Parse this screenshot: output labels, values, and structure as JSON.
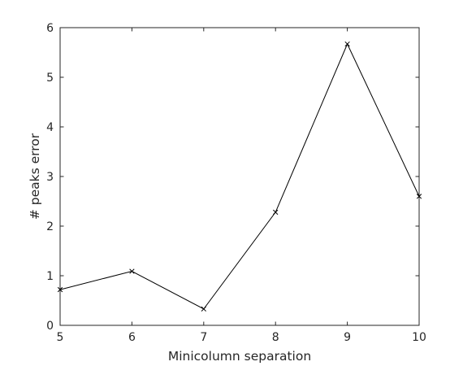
{
  "chart_data": {
    "type": "line",
    "title": "",
    "xlabel": "Minicolumn separation",
    "ylabel": "# peaks error",
    "xlim": [
      5,
      10
    ],
    "ylim": [
      0,
      6
    ],
    "x_ticks": [
      5,
      6,
      7,
      8,
      9,
      10
    ],
    "y_ticks": [
      0,
      1,
      2,
      3,
      4,
      5,
      6
    ],
    "grid": false,
    "series": [
      {
        "x": [
          5,
          6,
          7,
          8,
          9,
          10
        ],
        "values": [
          0.72,
          1.09,
          0.33,
          2.28,
          5.67,
          2.6
        ],
        "color": "#000000",
        "marker": "x"
      }
    ]
  }
}
